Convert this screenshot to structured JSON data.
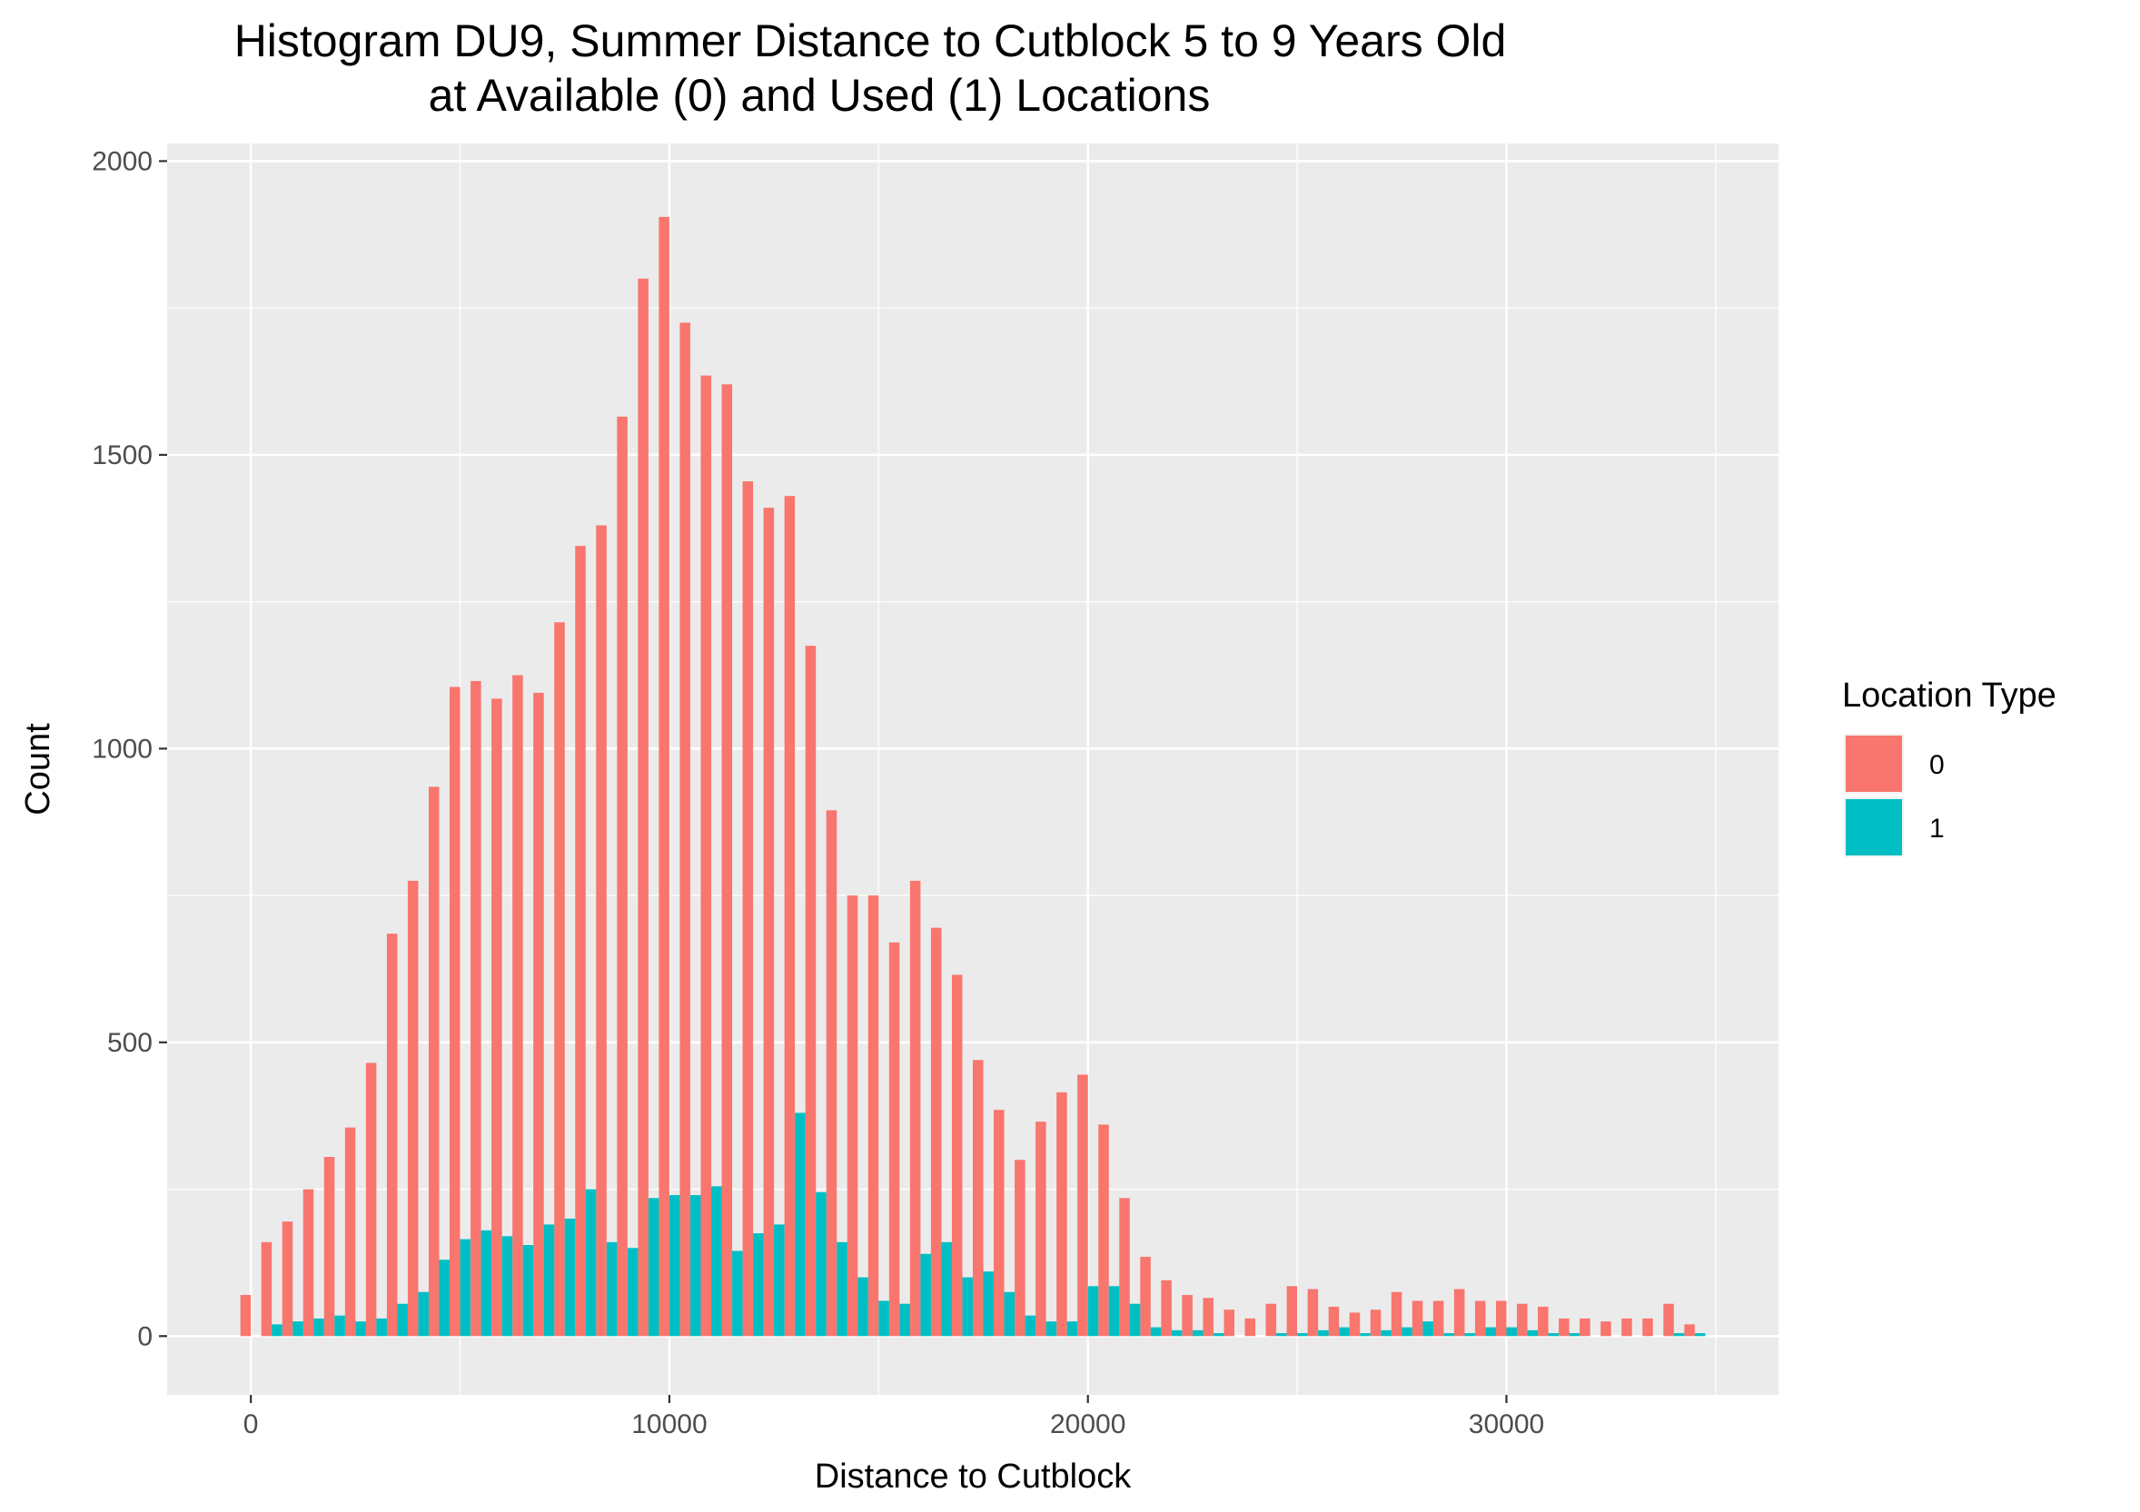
{
  "chart_data": {
    "type": "bar",
    "title": "Histogram DU9, Summer Distance to Cutblock 5 to 9 Years Old",
    "subtitle": "at Available (0) and Used (1) Locations",
    "xlabel": "Distance to Cutblock",
    "ylabel": "Count",
    "xlim": [
      -2000,
      36500
    ],
    "ylim": [
      -100,
      2030
    ],
    "x_ticks": [
      "0",
      "10000",
      "20000",
      "30000"
    ],
    "x_tick_values": [
      0,
      10000,
      20000,
      30000
    ],
    "y_ticks": [
      "0",
      "500",
      "1000",
      "1500",
      "2000"
    ],
    "y_tick_values": [
      0,
      500,
      1000,
      1500,
      2000
    ],
    "bin_width": 500,
    "bin_start": 0,
    "grid": true,
    "legend_position": "right",
    "legend_title": "Location Type",
    "series": [
      {
        "name": "0",
        "color": "#F8766D",
        "values": [
          70,
          160,
          195,
          250,
          305,
          355,
          465,
          685,
          775,
          935,
          1105,
          1115,
          1085,
          1125,
          1095,
          1215,
          1345,
          1380,
          1565,
          1800,
          1905,
          1725,
          1635,
          1620,
          1455,
          1410,
          1430,
          1175,
          895,
          750,
          750,
          670,
          775,
          695,
          615,
          470,
          385,
          300,
          365,
          415,
          445,
          360,
          235,
          135,
          95,
          70,
          65,
          45,
          30,
          55,
          85,
          80,
          50,
          40,
          45,
          75,
          60,
          60,
          80,
          60,
          60,
          55,
          50,
          30,
          30,
          25,
          30,
          30,
          55,
          20
        ]
      },
      {
        "name": "1",
        "color": "#00BFC4",
        "values": [
          0,
          20,
          25,
          30,
          35,
          25,
          30,
          55,
          75,
          130,
          165,
          180,
          170,
          155,
          190,
          200,
          250,
          160,
          150,
          235,
          240,
          240,
          255,
          145,
          175,
          190,
          380,
          245,
          160,
          100,
          60,
          55,
          140,
          160,
          100,
          110,
          75,
          35,
          25,
          25,
          85,
          85,
          55,
          15,
          10,
          10,
          5,
          0,
          0,
          5,
          5,
          10,
          15,
          5,
          10,
          15,
          25,
          5,
          5,
          15,
          15,
          10,
          5,
          5,
          0,
          0,
          0,
          0,
          5,
          5
        ]
      }
    ]
  }
}
